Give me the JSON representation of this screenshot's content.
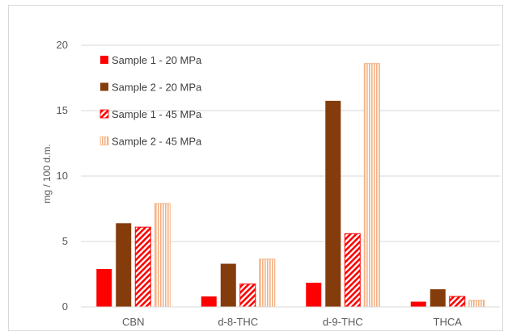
{
  "chart_data": {
    "type": "bar",
    "categories": [
      "CBN",
      "d-8-THC",
      "d-9-THC",
      "THCA"
    ],
    "series": [
      {
        "name": "Sample 1 - 20 MPa",
        "values": [
          2.9,
          0.8,
          1.85,
          0.4
        ],
        "color": "#ff0000",
        "pattern": "solid"
      },
      {
        "name": "Sample 2 - 20 MPa",
        "values": [
          6.4,
          3.3,
          15.75,
          1.35
        ],
        "color": "#843c0c",
        "pattern": "solid"
      },
      {
        "name": "Sample 1 - 45 MPa",
        "values": [
          6.1,
          1.75,
          5.6,
          0.8
        ],
        "color": "#ff0000",
        "pattern": "diagonal-hatch"
      },
      {
        "name": "Sample 2 - 45 MPa",
        "values": [
          7.9,
          3.65,
          18.6,
          0.5
        ],
        "color": "#f4b183",
        "pattern": "vertical-stripes"
      }
    ],
    "title": "",
    "xlabel": "",
    "ylabel": "mg / 100 d.m.",
    "ylim": [
      0,
      20
    ],
    "yticks": [
      0,
      5,
      10,
      15,
      20
    ],
    "grid": true,
    "legend_position": "top-left"
  }
}
